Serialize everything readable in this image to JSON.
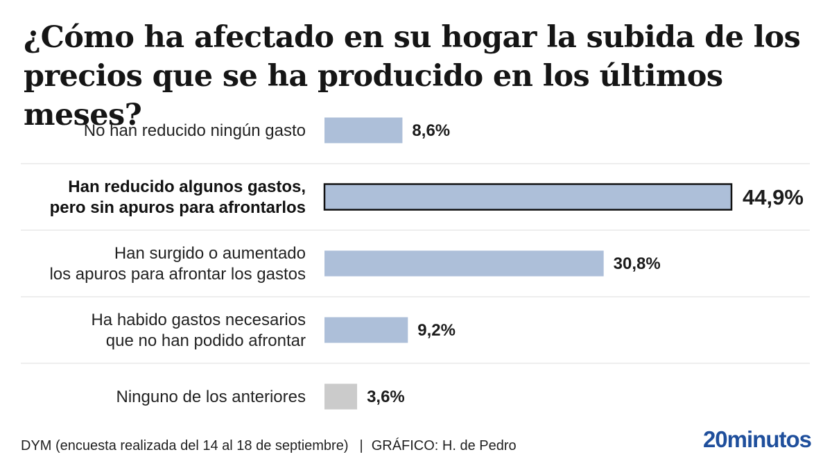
{
  "title": "¿Cómo ha afectado en su hogar la subida de los precios que se ha producido en los últimos meses?",
  "chart_data": {
    "type": "bar",
    "orientation": "horizontal",
    "categories": [
      [
        "No han reducido ningún gasto"
      ],
      [
        "Han reducido algunos gastos,",
        "pero sin apuros para afrontarlos"
      ],
      [
        "Han surgido o aumentado",
        "los apuros para afrontar los gastos"
      ],
      [
        "Ha habido gastos necesarios",
        "que no han podido afrontar"
      ],
      [
        "Ninguno de los anteriores"
      ]
    ],
    "values": [
      8.6,
      44.9,
      30.8,
      9.2,
      3.6
    ],
    "value_labels": [
      "8,6%",
      "44,9%",
      "30,8%",
      "9,2%",
      "3,6%"
    ],
    "highlight_index": 1,
    "xlim": [
      0,
      44.9
    ],
    "colors": {
      "bar": "#adbfd9",
      "bar_neutral": "#cbcbcb",
      "highlight_border": "#111111",
      "separator": "#dddddd"
    },
    "neutral_index": 4
  },
  "footer": {
    "source": "DYM (encuesta realizada del 14 al 18 de septiembre)",
    "separator": "|",
    "credit": "GRÁFICO: H. de Pedro"
  },
  "brand": {
    "name": "20minutos",
    "color": "#1f4f9c"
  }
}
